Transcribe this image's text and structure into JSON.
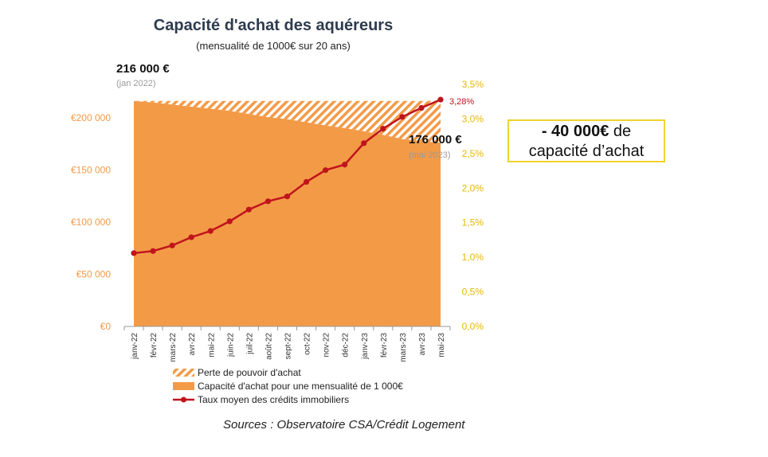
{
  "chart_data": {
    "type": "area",
    "title": "Capacité d'achat des aquéreurs",
    "subtitle": "(mensualité de 1000€ sur 20 ans)",
    "categories": [
      "janv-22",
      "févr-22",
      "mars-22",
      "avr-22",
      "mai-22",
      "juin-22",
      "juil-22",
      "août-22",
      "sept-22",
      "oct-22",
      "nov-22",
      "déc-22",
      "janv-23",
      "févr-23",
      "mars-23",
      "avr-23",
      "mai-23"
    ],
    "series": [
      {
        "name": "Perte de pouvoir d'achat",
        "type": "hatched-area",
        "values": [
          216000,
          216000,
          216000,
          216000,
          216000,
          216000,
          216000,
          216000,
          216000,
          216000,
          216000,
          216000,
          216000,
          216000,
          216000,
          216000,
          216000
        ],
        "color": "#f39a47"
      },
      {
        "name": "Capacité d'achat pour une mensualité de 1 000€",
        "type": "area",
        "axis": "left",
        "values": [
          216000,
          214500,
          212500,
          210500,
          208500,
          206500,
          203500,
          200500,
          198500,
          195500,
          192500,
          190000,
          187000,
          183500,
          179500,
          177500,
          176000
        ],
        "color": "#f39a47"
      },
      {
        "name": "Taux moyen des crédits immobiliers",
        "type": "line",
        "axis": "right",
        "values": [
          1.06,
          1.09,
          1.17,
          1.29,
          1.38,
          1.52,
          1.69,
          1.81,
          1.88,
          2.09,
          2.26,
          2.34,
          2.65,
          2.86,
          3.03,
          3.16,
          3.28
        ],
        "color": "#c0141c"
      }
    ],
    "y_left": {
      "ticks": [
        "€0",
        "€50 000",
        "€100 000",
        "€150 000",
        "€200 000"
      ],
      "tick_values": [
        0,
        50000,
        100000,
        150000,
        200000
      ],
      "ylim": [
        0,
        225000
      ],
      "color": "#f39a47"
    },
    "y_right": {
      "ticks": [
        "0,0%",
        "0,5%",
        "1,0%",
        "1,5%",
        "2,0%",
        "2,5%",
        "3,0%",
        "3,5%"
      ],
      "tick_values": [
        0,
        0.5,
        1.0,
        1.5,
        2.0,
        2.5,
        3.0,
        3.5
      ],
      "ylim": [
        0,
        3.5
      ],
      "color": "#e8b800"
    },
    "annotations": {
      "start_value": "216 000 €",
      "start_date": "(jan 2022)",
      "end_value": "176 000 €",
      "end_date": "(mai 2023)",
      "end_rate": "3,28%"
    },
    "legend": [
      {
        "label": "Perte de pouvoir d'achat",
        "kind": "hatch"
      },
      {
        "label": "Capacité d'achat pour une mensualité de 1 000€",
        "kind": "fill"
      },
      {
        "label": "Taux moyen des crédits immobiliers",
        "kind": "line"
      }
    ],
    "legend_position": "bottom",
    "grid": false
  },
  "callout": {
    "bold": "- 40 000€",
    "rest_line1": " de",
    "line2": "capacité d’achat"
  },
  "source": "Sources : Observatoire CSA/Crédit Logement"
}
